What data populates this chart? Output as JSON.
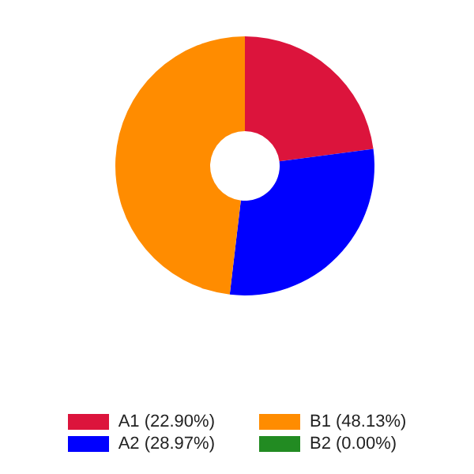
{
  "chart_data": {
    "type": "donut",
    "categories": [
      "A1",
      "A2",
      "B1",
      "B2"
    ],
    "values": [
      22.9,
      28.97,
      48.13,
      0.0
    ],
    "colors": [
      "#dc143c",
      "#0000ff",
      "#ff8c00",
      "#228b22"
    ],
    "value_labels": [
      "(22.90%)",
      "(28.97%)",
      "(48.13%)",
      "(0.00%)"
    ],
    "legend": "bottom"
  }
}
